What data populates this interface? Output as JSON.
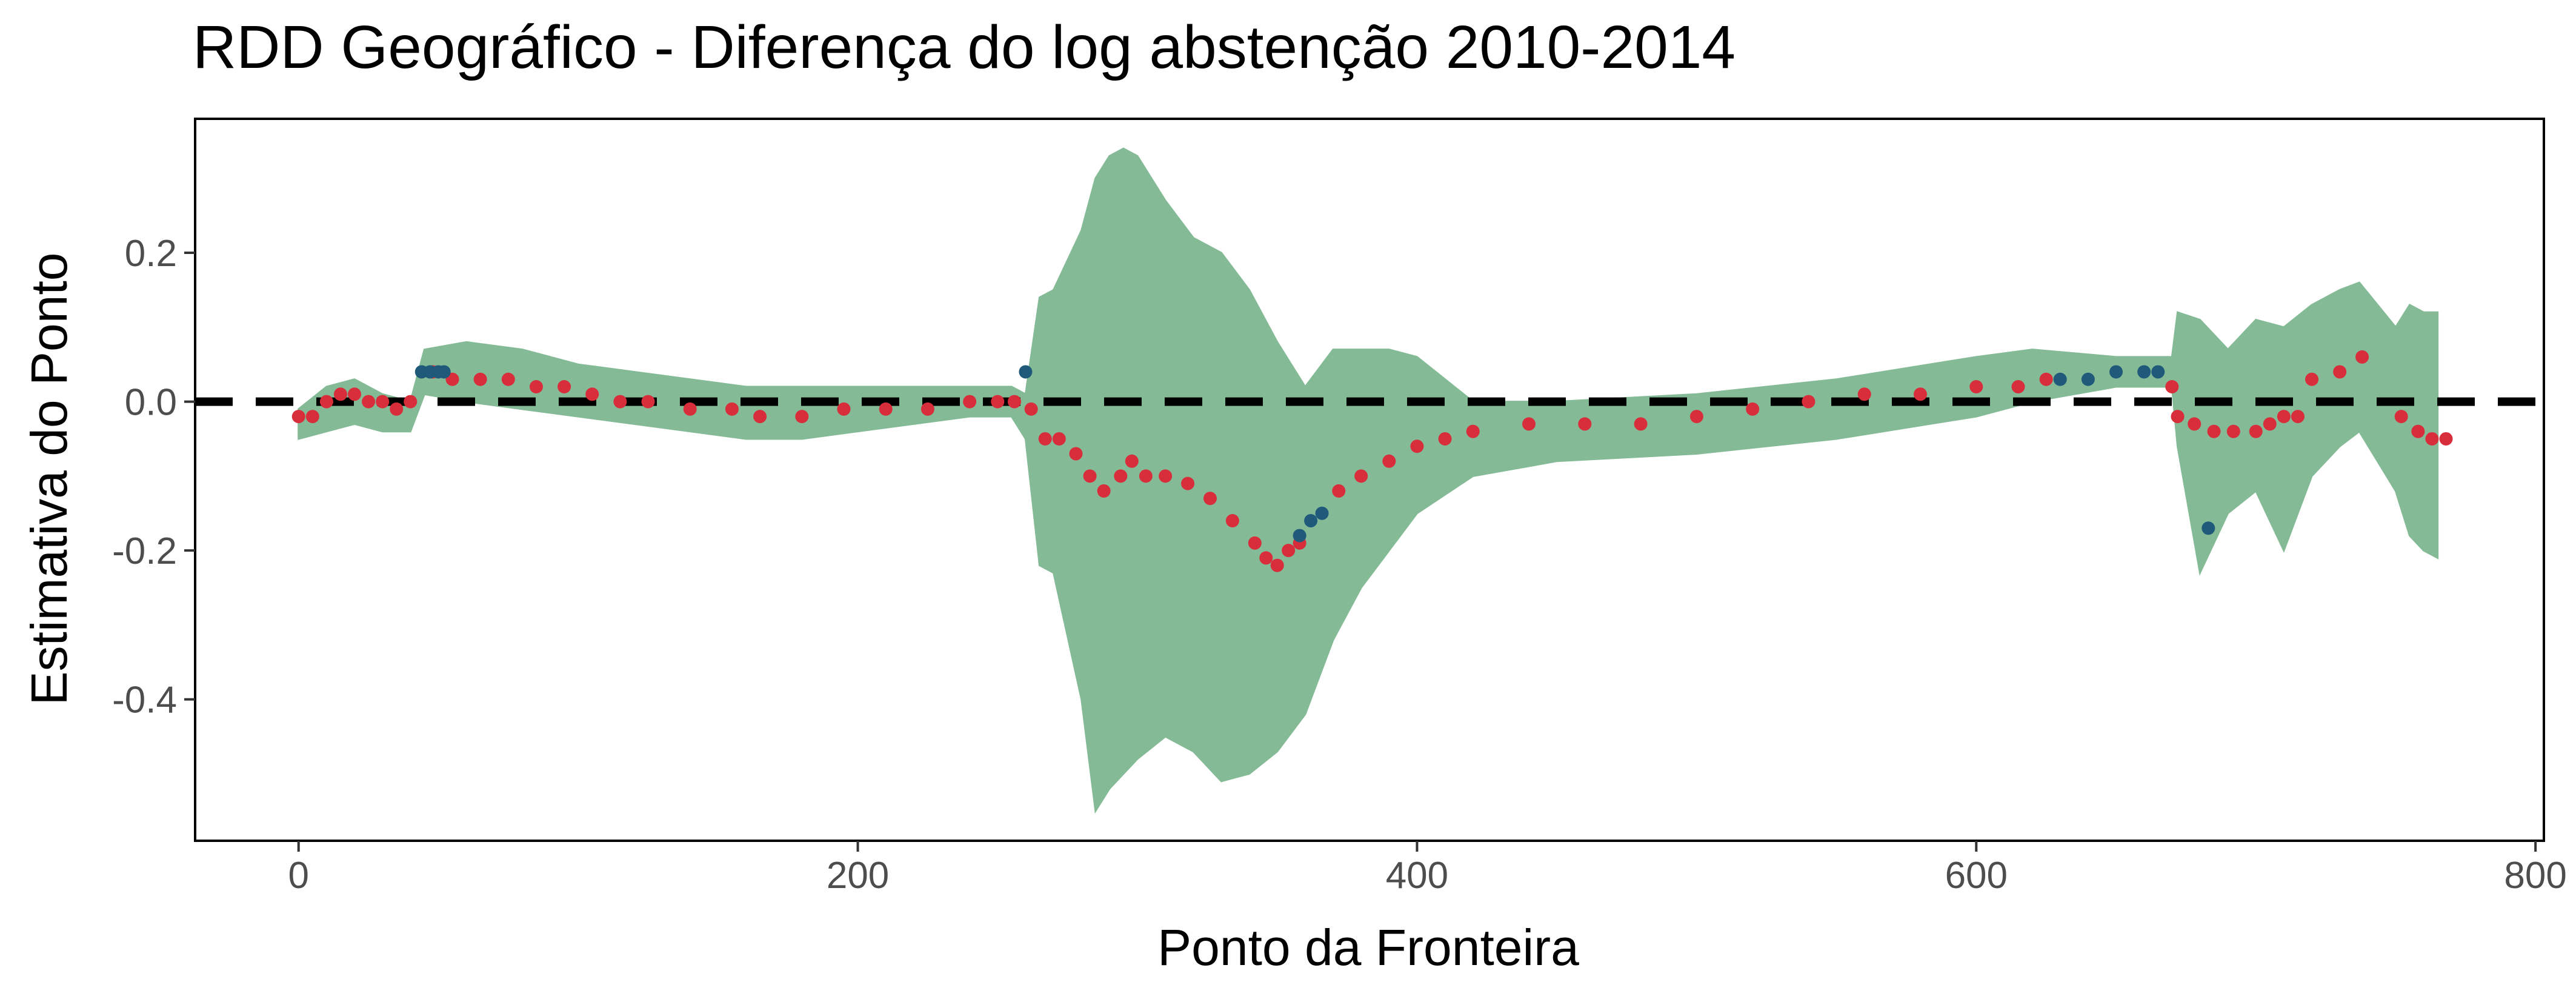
{
  "chart_data": {
    "type": "scatter",
    "title": "RDD Geográfico - Diferença do log abstenção 2010-2014",
    "xlabel": "Ponto da Fronteira",
    "ylabel": "Estimativa do Ponto",
    "xlim": [
      -37,
      803
    ],
    "ylim": [
      -0.59,
      0.38
    ],
    "x_ticks": [
      0,
      200,
      400,
      600,
      800
    ],
    "x_tick_labels": [
      "0",
      "200",
      "400",
      "600",
      "800"
    ],
    "y_ticks": [
      0.2,
      0.0,
      -0.2,
      -0.4
    ],
    "y_tick_labels": [
      "0.2",
      "0.0",
      "-0.2",
      "-0.4"
    ],
    "reference_line": {
      "y": 0,
      "style": "dashed"
    },
    "grid": false,
    "legend": "none",
    "colors": {
      "ci_band": "#84ba96",
      "significant": "#1f5a7a",
      "not_significant": "#d82e3c",
      "reference_line": "#000000"
    },
    "ci_band": {
      "x": [
        0,
        10,
        20,
        30,
        40,
        45,
        60,
        80,
        100,
        120,
        140,
        160,
        180,
        200,
        220,
        240,
        255,
        260,
        265,
        270,
        280,
        285,
        290,
        295,
        300,
        310,
        320,
        330,
        340,
        350,
        360,
        370,
        380,
        390,
        400,
        420,
        450,
        500,
        550,
        600,
        620,
        650,
        670,
        672,
        680,
        690,
        700,
        710,
        720,
        730,
        737,
        750,
        755,
        760,
        765
      ],
      "lower": [
        -0.05,
        -0.04,
        -0.03,
        -0.04,
        -0.04,
        0.01,
        0.0,
        -0.01,
        -0.02,
        -0.03,
        -0.04,
        -0.05,
        -0.05,
        -0.04,
        -0.03,
        -0.02,
        -0.02,
        -0.05,
        -0.22,
        -0.23,
        -0.4,
        -0.55,
        -0.52,
        -0.5,
        -0.48,
        -0.45,
        -0.47,
        -0.51,
        -0.5,
        -0.47,
        -0.42,
        -0.32,
        -0.25,
        -0.2,
        -0.15,
        -0.1,
        -0.08,
        -0.07,
        -0.05,
        -0.02,
        0.0,
        0.02,
        0.02,
        -0.06,
        -0.23,
        -0.15,
        -0.12,
        -0.2,
        -0.1,
        -0.06,
        -0.04,
        -0.12,
        -0.18,
        -0.2,
        -0.21
      ],
      "upper": [
        -0.01,
        0.02,
        0.03,
        0.01,
        0.0,
        0.07,
        0.08,
        0.07,
        0.05,
        0.04,
        0.03,
        0.02,
        0.02,
        0.02,
        0.02,
        0.02,
        0.02,
        0.01,
        0.14,
        0.15,
        0.23,
        0.3,
        0.33,
        0.34,
        0.33,
        0.27,
        0.22,
        0.2,
        0.15,
        0.08,
        0.02,
        0.07,
        0.07,
        0.07,
        0.06,
        0.0,
        0.0,
        0.01,
        0.03,
        0.06,
        0.07,
        0.06,
        0.06,
        0.12,
        0.11,
        0.07,
        0.11,
        0.1,
        0.13,
        0.15,
        0.16,
        0.1,
        0.13,
        0.12,
        0.12
      ]
    },
    "series": [
      {
        "type": "scatter",
        "x": [
          0,
          5,
          10,
          15,
          20,
          25,
          30,
          35,
          40,
          48,
          55,
          65,
          75,
          85,
          95,
          105,
          115,
          125,
          140,
          155,
          165,
          180,
          195,
          210,
          225,
          240,
          250,
          256,
          262,
          267,
          272,
          278,
          283,
          288,
          294,
          298,
          303,
          310,
          318,
          326,
          334,
          342,
          346,
          350,
          354,
          358,
          372,
          380,
          390,
          400,
          410,
          420,
          440,
          460,
          480,
          500,
          520,
          540,
          560,
          580,
          600,
          615,
          625,
          670,
          672,
          678,
          685,
          692,
          700,
          705,
          710,
          715,
          720,
          730,
          738,
          752,
          758,
          763,
          768
        ],
        "y": [
          -0.02,
          -0.02,
          0.0,
          0.01,
          0.01,
          0.0,
          0.0,
          -0.01,
          0.0,
          0.04,
          0.03,
          0.03,
          0.03,
          0.02,
          0.02,
          0.01,
          0.0,
          0.0,
          -0.01,
          -0.01,
          -0.02,
          -0.02,
          -0.01,
          -0.01,
          -0.01,
          0.0,
          0.0,
          0.0,
          -0.01,
          -0.05,
          -0.05,
          -0.07,
          -0.1,
          -0.12,
          -0.1,
          -0.08,
          -0.1,
          -0.1,
          -0.11,
          -0.13,
          -0.16,
          -0.19,
          -0.21,
          -0.22,
          -0.2,
          -0.19,
          -0.12,
          -0.1,
          -0.08,
          -0.06,
          -0.05,
          -0.04,
          -0.03,
          -0.03,
          -0.03,
          -0.02,
          -0.01,
          0.0,
          0.01,
          0.01,
          0.02,
          0.02,
          0.03,
          0.02,
          -0.02,
          -0.03,
          -0.04,
          -0.04,
          -0.04,
          -0.03,
          -0.02,
          -0.02,
          0.03,
          0.04,
          0.06,
          -0.02,
          -0.04,
          -0.05,
          -0.05
        ]
      },
      {
        "type": "scatter",
        "x": [
          44,
          47,
          50,
          52,
          260,
          358,
          362,
          366,
          630,
          640,
          650,
          660,
          665,
          683
        ],
        "y": [
          0.04,
          0.04,
          0.04,
          0.04,
          0.04,
          -0.18,
          -0.16,
          -0.15,
          0.03,
          0.03,
          0.04,
          0.04,
          0.04,
          -0.17
        ]
      }
    ]
  }
}
